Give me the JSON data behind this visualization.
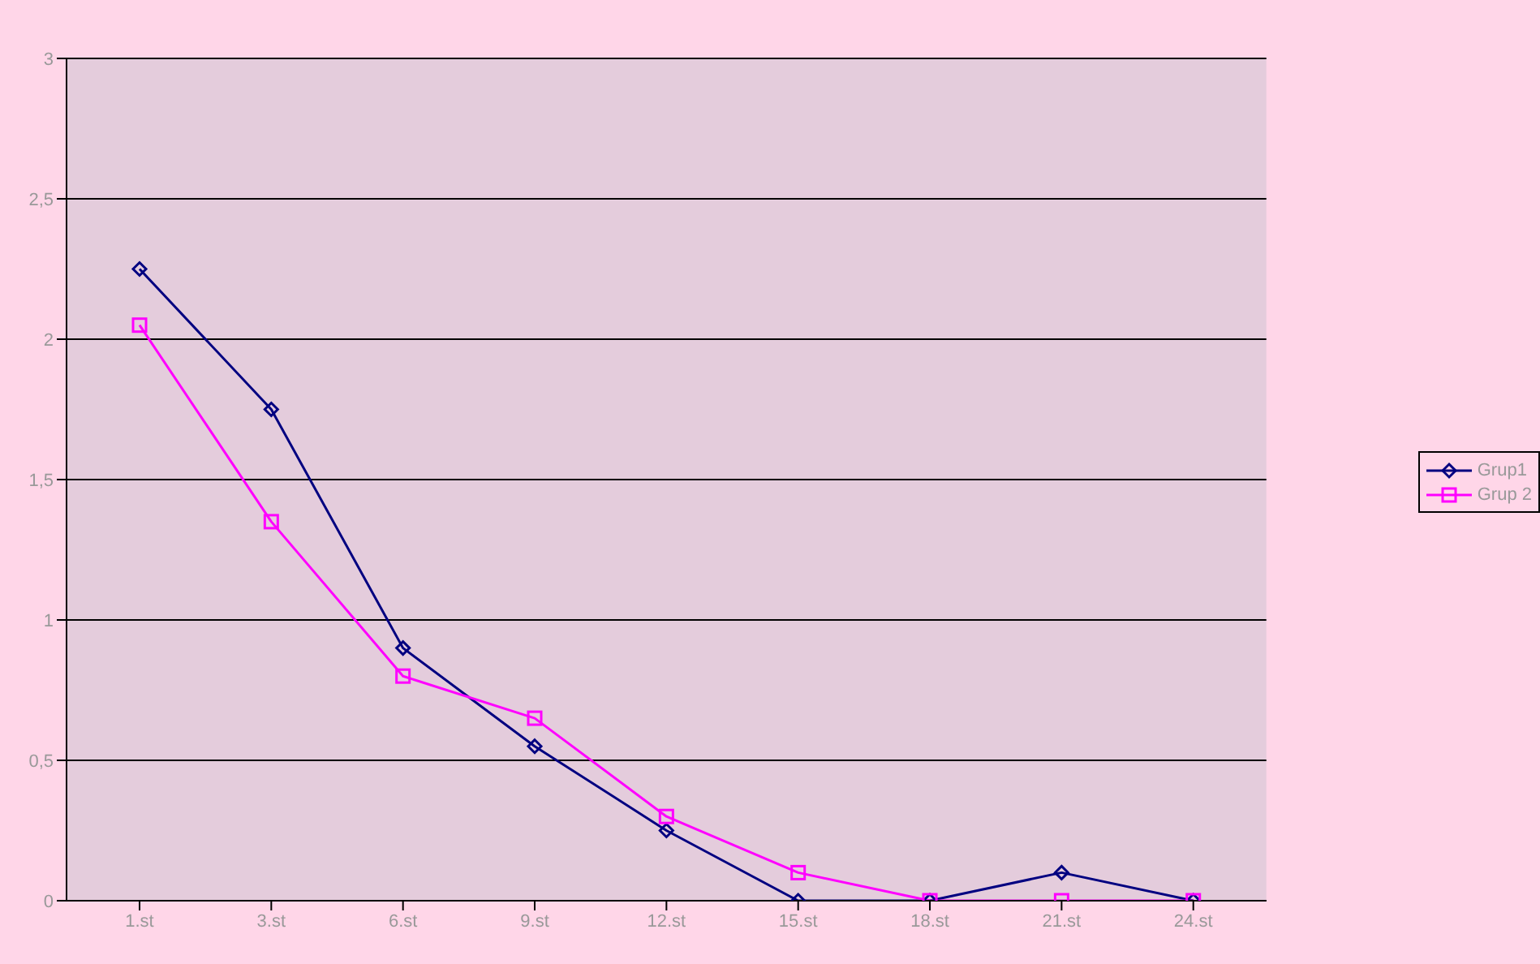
{
  "chart_data": {
    "type": "line",
    "categories": [
      "1.st",
      "3.st",
      "6.st",
      "9.st",
      "12.st",
      "15.st",
      "18.st",
      "21.st",
      "24.st"
    ],
    "series": [
      {
        "name": "Grup1",
        "color": "#000080",
        "marker": "diamond",
        "values": [
          2.25,
          1.75,
          0.9,
          0.55,
          0.25,
          0,
          0,
          0.1,
          0
        ]
      },
      {
        "name": "Grup 2",
        "color": "#ff00ff",
        "marker": "square",
        "values": [
          2.05,
          1.35,
          0.8,
          0.65,
          0.3,
          0.1,
          0,
          0,
          0
        ]
      }
    ],
    "ylim": [
      0,
      3
    ],
    "yticks": [
      0,
      {
        "value": 0.5,
        "label": "0,5"
      },
      1,
      {
        "value": 1.5,
        "label": "1,5"
      },
      2,
      {
        "value": 2.5,
        "label": "2,5"
      },
      3
    ],
    "grid": "y",
    "legend": "right"
  }
}
